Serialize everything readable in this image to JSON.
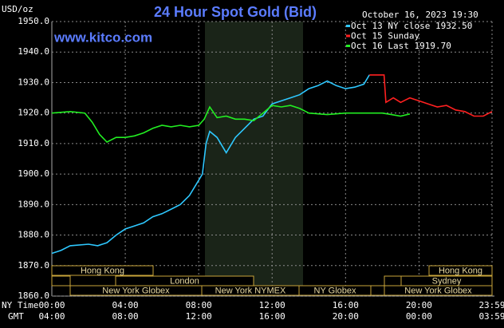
{
  "chart_data": {
    "type": "line",
    "title": "24 Hour Spot Gold (Bid)",
    "unit": "USD/oz",
    "site": "www.kitco.com",
    "timestamp": "October 16, 2023 19:30",
    "x_row_labels": [
      "NY Time",
      "GMT"
    ],
    "xlim": [
      0,
      23.98
    ],
    "xticks": [
      {
        "value": 0,
        "label": "00:00"
      },
      {
        "value": 4,
        "label": "04:00"
      },
      {
        "value": 8,
        "label": "08:00"
      },
      {
        "value": 12,
        "label": "12:00"
      },
      {
        "value": 16,
        "label": "16:00"
      },
      {
        "value": 20,
        "label": "20:00"
      },
      {
        "value": 23.98,
        "label": "23:59"
      }
    ],
    "x2ticks": [
      {
        "value": 0,
        "label": "04:00"
      },
      {
        "value": 4,
        "label": "08:00"
      },
      {
        "value": 8,
        "label": "12:00"
      },
      {
        "value": 12,
        "label": "16:00"
      },
      {
        "value": 16,
        "label": "20:00"
      },
      {
        "value": 20,
        "label": "00:00"
      },
      {
        "value": 23.98,
        "label": "03:59"
      }
    ],
    "ylim": [
      1860,
      1950
    ],
    "yticks": [
      {
        "value": 1860,
        "label": "1860.0"
      },
      {
        "value": 1870,
        "label": "1870.0"
      },
      {
        "value": 1880,
        "label": "1880.0"
      },
      {
        "value": 1890,
        "label": "1890.0"
      },
      {
        "value": 1900,
        "label": "1900.0"
      },
      {
        "value": 1910,
        "label": "1910.0"
      },
      {
        "value": 1920,
        "label": "1920.0"
      },
      {
        "value": 1930,
        "label": "1930.0"
      },
      {
        "value": 1940,
        "label": "1940.0"
      },
      {
        "value": 1950,
        "label": "1950.0"
      }
    ],
    "grid": true,
    "sessions": [
      "Hong Kong",
      "London",
      "New York Globex",
      "New York NYMEX",
      "NY Globex",
      "Hong Kong",
      "Sydney",
      "New York Globex"
    ],
    "series": [
      {
        "name": "Oct 13 NY close 1932.50",
        "color": "#2ec8ff",
        "x": [
          0,
          0.5,
          1,
          2,
          2.5,
          3,
          3.5,
          4,
          4.5,
          5,
          5.5,
          6,
          6.5,
          7,
          7.5,
          8,
          8.2,
          8.4,
          8.6,
          9,
          9.5,
          10,
          10.5,
          11,
          11.5,
          12,
          12.5,
          13,
          13.5,
          14,
          14.5,
          15,
          15.5,
          16,
          16.5,
          17,
          17.3
        ],
        "values": [
          1874,
          1875,
          1876.5,
          1877,
          1876.5,
          1877.5,
          1880,
          1882,
          1883,
          1884,
          1886,
          1887,
          1888.5,
          1890,
          1893,
          1898,
          1900,
          1910,
          1914,
          1912,
          1907,
          1912,
          1915,
          1918,
          1919,
          1923,
          1924,
          1925,
          1926,
          1928,
          1929,
          1930.5,
          1929,
          1928,
          1928.5,
          1929.5,
          1932.5
        ]
      },
      {
        "name": "Oct 15 Sunday",
        "color": "#ff2020",
        "x": [
          17.3,
          18.1,
          18.2,
          18.6,
          19,
          19.5,
          20,
          20.5,
          21,
          21.5,
          22,
          22.5,
          23,
          23.5,
          23.98
        ],
        "values": [
          1932.5,
          1932.5,
          1923.5,
          1925,
          1923.5,
          1925,
          1924,
          1923,
          1922,
          1922.5,
          1921,
          1920.5,
          1919,
          1919,
          1920.5
        ]
      },
      {
        "name": "Oct 16 Last 1919.70",
        "color": "#22ee22",
        "x": [
          0,
          1,
          1.8,
          2.2,
          2.6,
          3,
          3.5,
          4,
          4.5,
          5,
          5.5,
          6,
          6.5,
          7,
          7.5,
          8,
          8.3,
          8.6,
          9,
          9.5,
          10,
          10.5,
          11,
          11.5,
          12,
          12.5,
          13,
          13.5,
          14,
          15,
          16,
          17,
          18,
          18.5,
          19,
          19.5
        ],
        "values": [
          1920,
          1920.5,
          1920,
          1917,
          1913,
          1910.5,
          1912,
          1912,
          1912.5,
          1913.5,
          1915,
          1916,
          1915.5,
          1916,
          1915.5,
          1916,
          1918,
          1922,
          1918.5,
          1919,
          1918,
          1918,
          1917.5,
          1920,
          1922.5,
          1922,
          1922.5,
          1921.5,
          1920,
          1919.5,
          1920,
          1920,
          1920,
          1919.5,
          1919,
          1919.7
        ]
      }
    ]
  }
}
